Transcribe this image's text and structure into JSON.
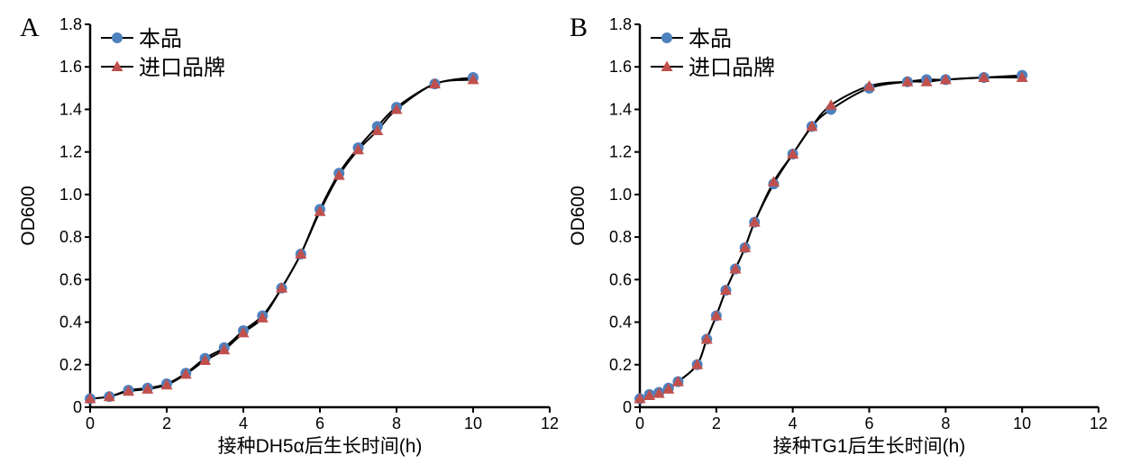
{
  "chart_data": [
    {
      "type": "line",
      "panel_label": "A",
      "xlabel": "接种DH5α后生长时间(h)",
      "ylabel": "OD600",
      "xlim": [
        0,
        12
      ],
      "ylim": [
        0,
        1.8
      ],
      "xticks": [
        0,
        2,
        4,
        6,
        8,
        10,
        12
      ],
      "yticks": [
        0,
        0.2,
        0.4,
        0.6,
        0.8,
        1.0,
        1.2,
        1.4,
        1.6,
        1.8
      ],
      "ytick_labels": [
        "0",
        "0.2",
        "0.4",
        "0.6",
        "0.8",
        "1.0",
        "1.2",
        "1.4",
        "1.6",
        "1.8"
      ],
      "grid": false,
      "legend_placement": "top-left",
      "x": [
        0,
        0.5,
        1,
        1.5,
        2,
        2.5,
        3,
        3.5,
        4,
        4.5,
        5,
        5.5,
        6,
        6.5,
        7,
        7.5,
        8,
        9,
        10
      ],
      "series": [
        {
          "name": "本品",
          "marker": "circle",
          "color": "#4f81bd",
          "values": [
            0.04,
            0.05,
            0.08,
            0.09,
            0.11,
            0.16,
            0.23,
            0.28,
            0.36,
            0.43,
            0.56,
            0.72,
            0.93,
            1.1,
            1.22,
            1.32,
            1.41,
            1.52,
            1.55
          ]
        },
        {
          "name": "进口品牌",
          "marker": "triangle",
          "color": "#c0504d",
          "values": [
            0.04,
            0.05,
            0.075,
            0.085,
            0.105,
            0.155,
            0.22,
            0.27,
            0.35,
            0.42,
            0.56,
            0.72,
            0.92,
            1.09,
            1.21,
            1.3,
            1.4,
            1.52,
            1.54
          ]
        }
      ]
    },
    {
      "type": "line",
      "panel_label": "B",
      "xlabel": "接种TG1后生长时间(h)",
      "ylabel": "OD600",
      "xlim": [
        0,
        12
      ],
      "ylim": [
        0,
        1.8
      ],
      "xticks": [
        0,
        2,
        4,
        6,
        8,
        10,
        12
      ],
      "yticks": [
        0,
        0.2,
        0.4,
        0.6,
        0.8,
        1.0,
        1.2,
        1.4,
        1.6,
        1.8
      ],
      "ytick_labels": [
        "0",
        "0.2",
        "0.4",
        "0.6",
        "0.8",
        "1.0",
        "1.2",
        "1.4",
        "1.6",
        "1.8"
      ],
      "grid": false,
      "legend_placement": "top-left",
      "x": [
        0,
        0.25,
        0.5,
        0.75,
        1,
        1.5,
        1.75,
        2,
        2.25,
        2.5,
        2.75,
        3,
        3.5,
        4,
        4.5,
        5,
        6,
        7,
        7.5,
        8,
        9,
        10
      ],
      "series": [
        {
          "name": "本品",
          "marker": "circle",
          "color": "#4f81bd",
          "values": [
            0.04,
            0.06,
            0.07,
            0.09,
            0.12,
            0.2,
            0.32,
            0.43,
            0.55,
            0.65,
            0.75,
            0.87,
            1.05,
            1.19,
            1.32,
            1.4,
            1.5,
            1.53,
            1.54,
            1.54,
            1.55,
            1.56
          ]
        },
        {
          "name": "进口品牌",
          "marker": "triangle",
          "color": "#c0504d",
          "values": [
            0.04,
            0.055,
            0.065,
            0.085,
            0.12,
            0.2,
            0.32,
            0.43,
            0.55,
            0.65,
            0.75,
            0.87,
            1.06,
            1.19,
            1.32,
            1.42,
            1.51,
            1.53,
            1.53,
            1.54,
            1.55,
            1.55
          ]
        }
      ]
    }
  ]
}
